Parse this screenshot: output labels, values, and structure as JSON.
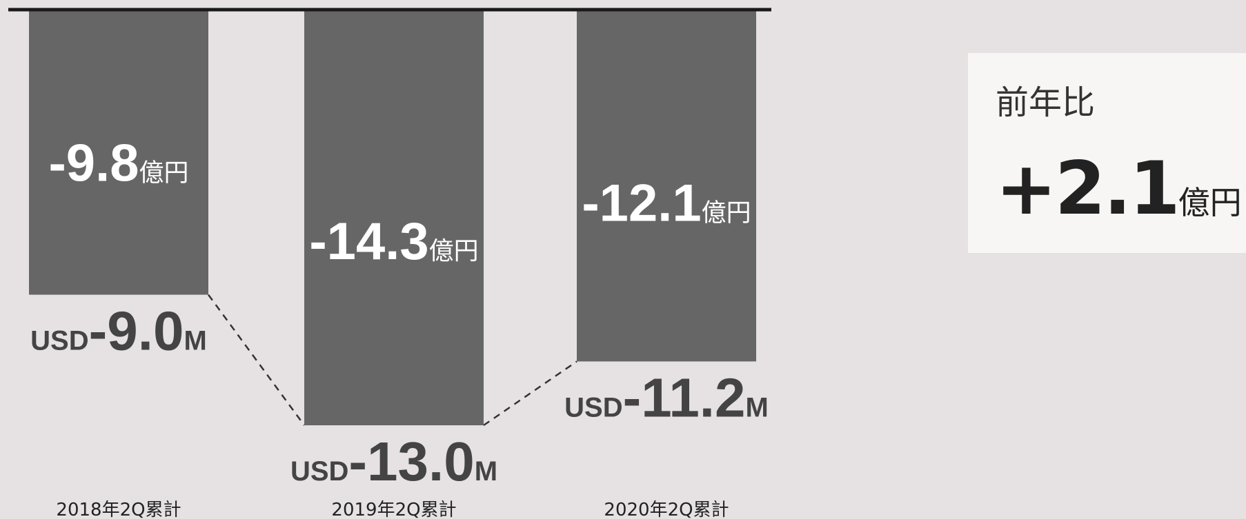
{
  "chart_data": {
    "type": "bar",
    "categories": [
      "2018年2Q累計",
      "2019年2Q累計",
      "2020年2Q累計"
    ],
    "values": [
      -9.8,
      -14.3,
      -12.1
    ],
    "value_unit": "億円",
    "secondary_values": [
      -9.0,
      -13.0,
      -11.2
    ],
    "secondary_prefix": "USD",
    "secondary_unit": "M",
    "value_labels": [
      "-9.8",
      "-14.3",
      "-12.1"
    ],
    "secondary_labels": [
      "-9.0",
      "-13.0",
      "-11.2"
    ],
    "ylim": [
      -16.6,
      0
    ],
    "grid": false,
    "connectors": "dashed",
    "bar_color": "#666666"
  },
  "yoy": {
    "title": "前年比",
    "value": "+2.1",
    "unit": "億円"
  }
}
